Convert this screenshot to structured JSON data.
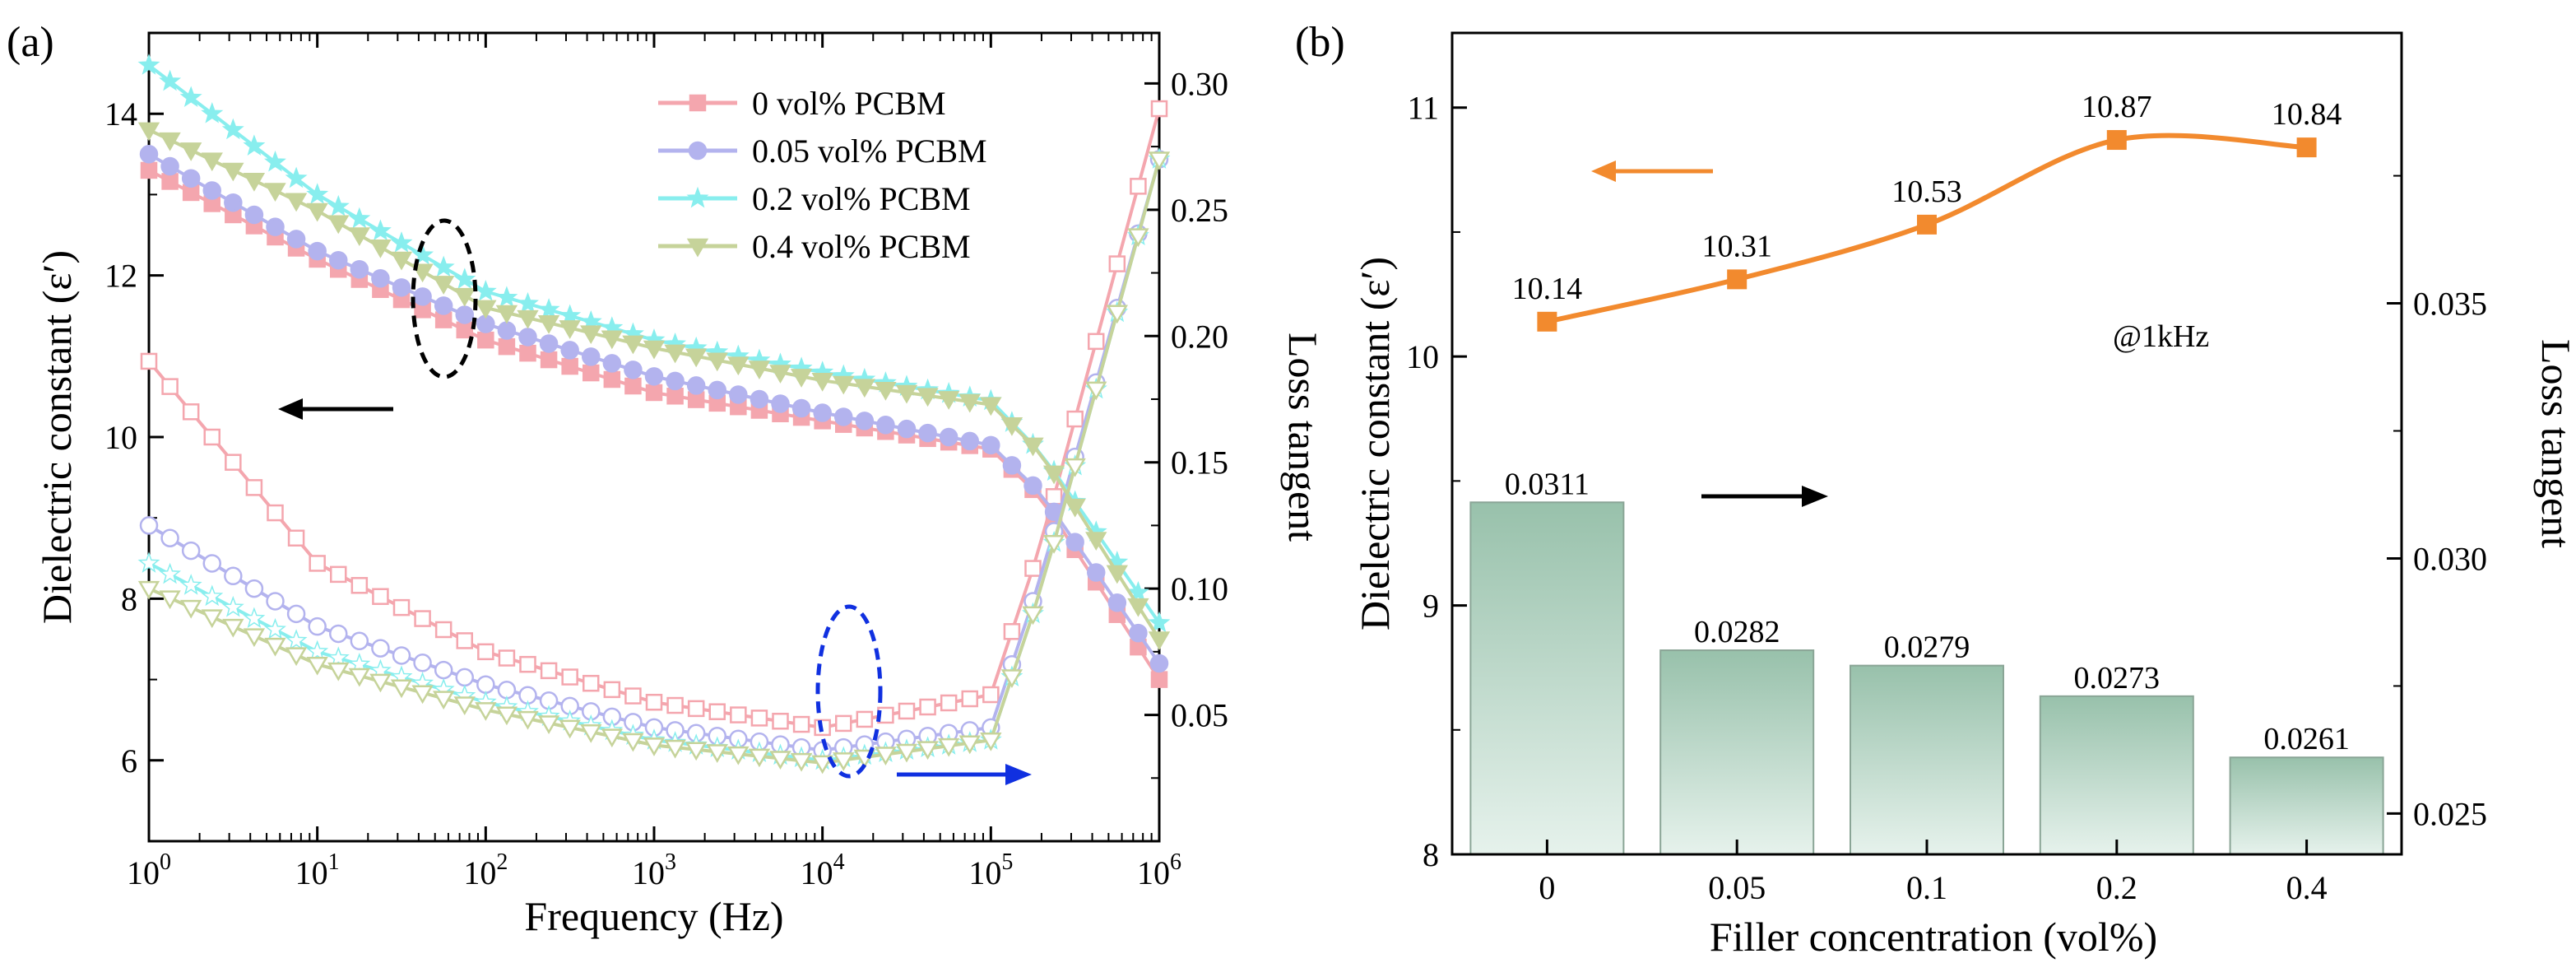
{
  "chart_data": [
    {
      "panel": "(a)",
      "type": "line",
      "xscale": "log",
      "xlabel": "Frequency (Hz)",
      "ylabel_left": "Dielectric constant (ε′)",
      "ylabel_right": "Loss tangent",
      "xlim": [
        1,
        1000000
      ],
      "ylim_left": [
        5,
        15
      ],
      "ylim_right": [
        0,
        0.32
      ],
      "x_ticks": [
        {
          "base": "10",
          "exp": "0"
        },
        {
          "base": "10",
          "exp": "1"
        },
        {
          "base": "10",
          "exp": "2"
        },
        {
          "base": "10",
          "exp": "3"
        },
        {
          "base": "10",
          "exp": "4"
        },
        {
          "base": "10",
          "exp": "5"
        },
        {
          "base": "10",
          "exp": "6"
        }
      ],
      "y_ticks_left": [
        "6",
        "8",
        "10",
        "12",
        "14"
      ],
      "y_ticks_right": [
        "0.05",
        "0.10",
        "0.15",
        "0.20",
        "0.25",
        "0.30"
      ],
      "series": [
        {
          "name": "0 vol% PCBM",
          "color": "#f4a6ae",
          "marker": "square",
          "dielectric": [
            13.3,
            12.2,
            11.2,
            10.55,
            10.2,
            9.85,
            9.25,
            7.0
          ],
          "loss": [
            0.19,
            0.11,
            0.075,
            0.055,
            0.045,
            0.058,
            0.118,
            0.29
          ]
        },
        {
          "name": "0.05 vol% PCBM",
          "color": "#b3b3ee",
          "marker": "circle",
          "dielectric": [
            13.5,
            12.3,
            11.4,
            10.75,
            10.3,
            9.9,
            9.3,
            7.2
          ],
          "loss": [
            0.125,
            0.085,
            0.062,
            0.045,
            0.036,
            0.045,
            0.105,
            0.27
          ]
        },
        {
          "name": "0.2 vol% PCBM",
          "color": "#88eeee",
          "marker": "star",
          "dielectric": [
            14.6,
            13.0,
            11.8,
            11.2,
            10.8,
            10.45,
            9.8,
            7.7
          ],
          "loss": [
            0.11,
            0.075,
            0.055,
            0.04,
            0.032,
            0.04,
            0.1,
            0.27
          ]
        },
        {
          "name": "0.4 vol% PCBM",
          "color": "#c6d39a",
          "marker": "triangle-down",
          "dielectric": [
            13.8,
            12.8,
            11.6,
            11.1,
            10.7,
            10.4,
            9.8,
            7.5
          ],
          "loss": [
            0.1,
            0.07,
            0.052,
            0.038,
            0.031,
            0.04,
            0.1,
            0.27
          ]
        }
      ],
      "annotations": [
        "arrow-left",
        "arrow-right",
        "ellipse-black",
        "ellipse-blue"
      ]
    },
    {
      "panel": "(b)",
      "type": "bar+line",
      "xlabel": "Filler concentration (vol%)",
      "ylabel_left": "Dielectric constant (ε′)",
      "ylabel_right": "Loss tangent",
      "categories": [
        "0",
        "0.05",
        "0.1",
        "0.2",
        "0.4"
      ],
      "dielectric_values": [
        10.14,
        10.31,
        10.53,
        10.87,
        10.84
      ],
      "dielectric_labels": [
        "10.14",
        "10.31",
        "10.53",
        "10.87",
        "10.84"
      ],
      "loss_values": [
        0.0311,
        0.0282,
        0.0279,
        0.0273,
        0.0261
      ],
      "loss_labels": [
        "0.0311",
        "0.0282",
        "0.0279",
        "0.0273",
        "0.0261"
      ],
      "ylim_left": [
        8,
        11.3
      ],
      "ylim_right": [
        0.0242,
        0.0403
      ],
      "y_ticks_left": [
        "8",
        "9",
        "10",
        "11"
      ],
      "y_ticks_right": [
        "0.025",
        "0.030",
        "0.035"
      ],
      "y_tick_values_right": [
        0.025,
        0.03,
        0.035
      ],
      "annotation_text": "@1kHz",
      "line_color": "#f28a2e",
      "bar_color": "#9fc4b0"
    }
  ]
}
